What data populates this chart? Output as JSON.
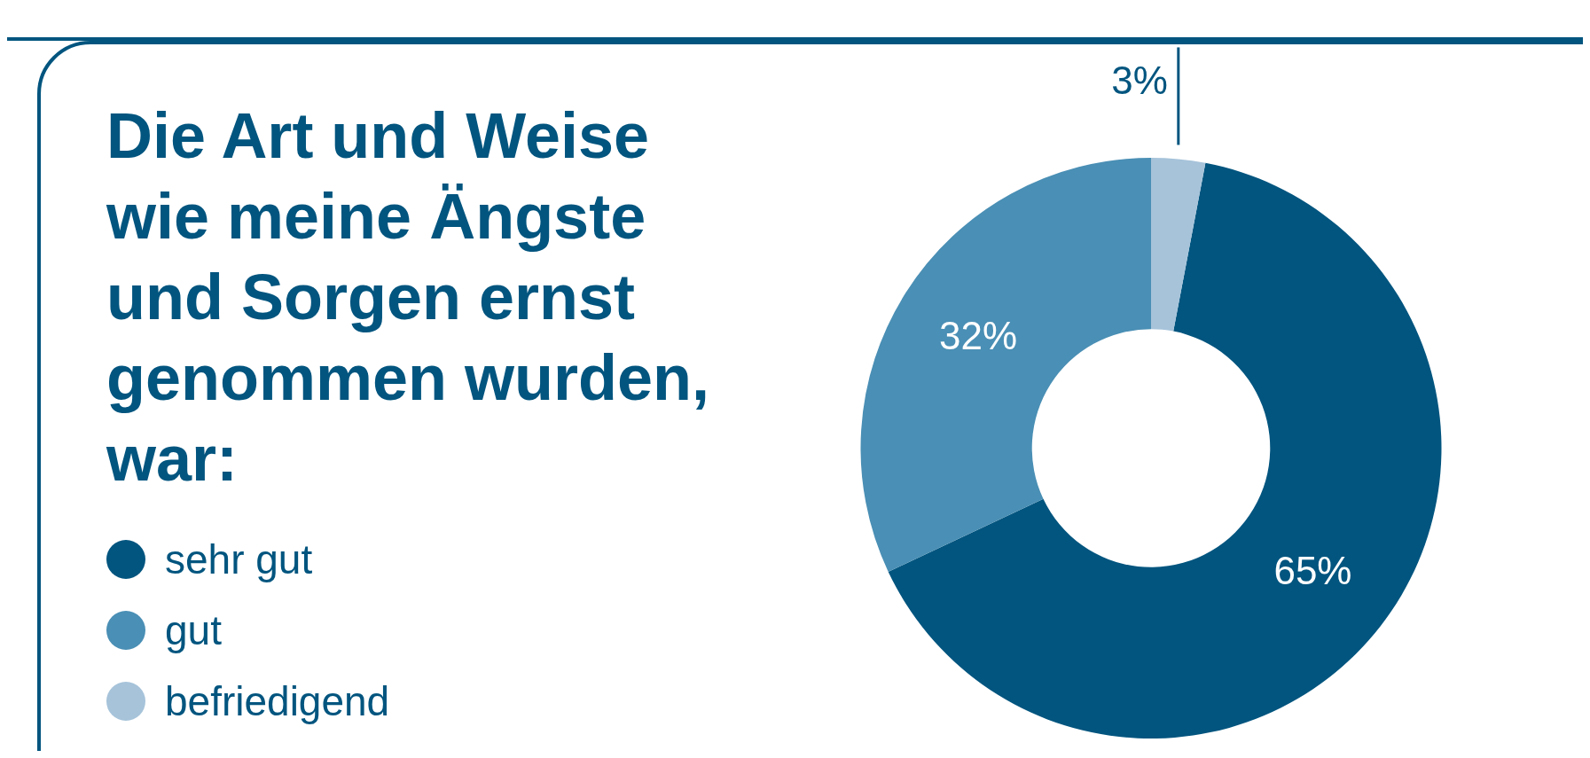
{
  "chart_data": {
    "type": "donut",
    "title": "Die Art und Weise wie meine Ängste und Sorgen ernst genommen wurden, war:",
    "categories": [
      "sehr gut",
      "gut",
      "befriedigend"
    ],
    "values": [
      65,
      32,
      3
    ],
    "colors": [
      "#02557f",
      "#4a8fb5",
      "#a6c3da"
    ],
    "value_labels": [
      "65%",
      "32%",
      "3%"
    ],
    "legend": "left"
  }
}
